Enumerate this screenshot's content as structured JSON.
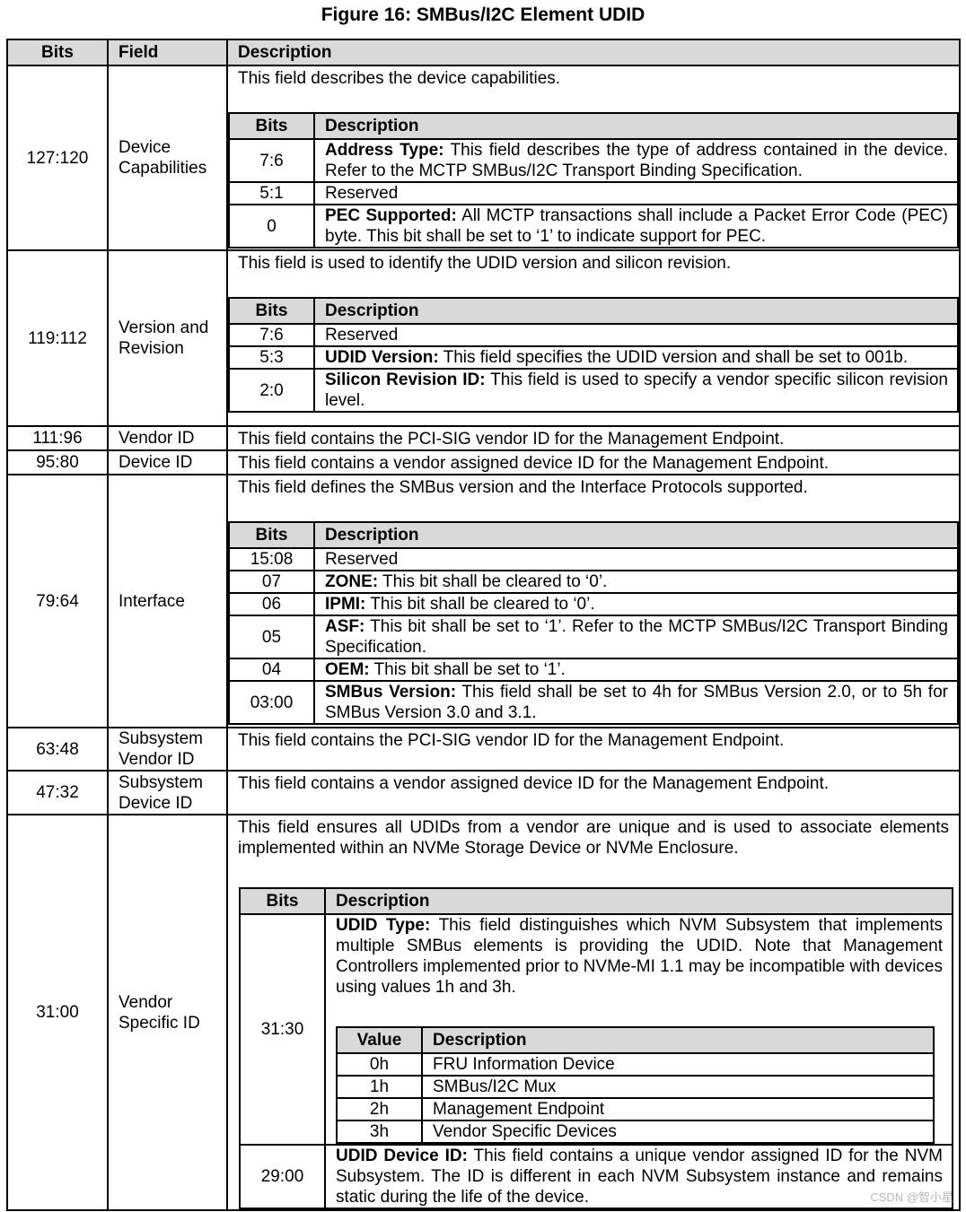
{
  "title": "Figure 16: SMBus/I2C Element UDID",
  "headers": [
    "Bits",
    "Field",
    "Description"
  ],
  "rows": [
    {
      "bits": "127:120",
      "field": "Device Capabilities",
      "intro": "This field describes the device capabilities.",
      "sub": {
        "headers": [
          "Bits",
          "Description"
        ],
        "rows": [
          {
            "bits": "7:6",
            "label": "Address Type:",
            "text": " This field describes the type of address contained in the device. Refer to the MCTP SMBus/I2C Transport Binding Specification."
          },
          {
            "bits": "5:1",
            "text": "Reserved"
          },
          {
            "bits": "0",
            "label": "PEC Supported:",
            "text": " All MCTP transactions shall include a Packet Error Code (PEC) byte. This bit shall be set to ‘1’ to indicate support for PEC."
          }
        ]
      }
    },
    {
      "bits": "119:112",
      "field": "Version and Revision",
      "intro": "This field is used to identify the UDID version and silicon revision.",
      "sub": {
        "headers": [
          "Bits",
          "Description"
        ],
        "rows": [
          {
            "bits": "7:6",
            "text": "Reserved"
          },
          {
            "bits": "5:3",
            "label": "UDID Version:",
            "text": " This field specifies the UDID version and shall be set to 001b."
          },
          {
            "bits": "2:0",
            "label": "Silicon Revision ID:",
            "text": " This field is used to specify a vendor specific silicon revision level."
          }
        ]
      }
    },
    {
      "bits": "111:96",
      "field": "Vendor ID",
      "intro": "This field contains the PCI-SIG vendor ID for the Management Endpoint."
    },
    {
      "bits": "95:80",
      "field": "Device ID",
      "intro": "This field contains a vendor assigned device ID for the Management Endpoint."
    },
    {
      "bits": "79:64",
      "field": "Interface",
      "intro": "This field defines the SMBus version and the Interface Protocols supported.",
      "sub": {
        "headers": [
          "Bits",
          "Description"
        ],
        "rows": [
          {
            "bits": "15:08",
            "text": "Reserved"
          },
          {
            "bits": "07",
            "label": "ZONE:",
            "text": " This bit shall be cleared to ‘0’."
          },
          {
            "bits": "06",
            "label": "IPMI:",
            "text": " This bit shall be cleared to ‘0’."
          },
          {
            "bits": "05",
            "label": "ASF:",
            "text": " This bit shall be set to ‘1’. Refer to the MCTP SMBus/I2C Transport Binding Specification."
          },
          {
            "bits": "04",
            "label": "OEM:",
            "text": " This bit shall be set to ‘1’."
          },
          {
            "bits": "03:00",
            "label": "SMBus Version:",
            "text": " This field shall be set to 4h for SMBus Version 2.0, or to 5h for SMBus Version 3.0 and 3.1."
          }
        ]
      }
    },
    {
      "bits": "63:48",
      "field": "Subsystem Vendor ID",
      "intro": "This field contains the PCI-SIG vendor ID for the Management Endpoint."
    },
    {
      "bits": "47:32",
      "field": "Subsystem Device ID",
      "intro": "This field contains a vendor assigned device ID for the Management Endpoint."
    },
    {
      "bits": "31:00",
      "field": "Vendor Specific ID",
      "intro": "This field ensures all UDIDs from a vendor are unique and is used to associate elements implemented within an NVMe Storage Device or NVMe Enclosure.",
      "sub": {
        "headers": [
          "Bits",
          "Description"
        ],
        "rows": [
          {
            "bits": "31:30",
            "label": "UDID Type:",
            "text": " This field distinguishes which NVM Subsystem that implements multiple SMBus elements is providing the UDID. Note that Management Controllers implemented prior to NVMe-MI 1.1 may be incompatible with devices using values 1h and 3h.",
            "sub": {
              "headers": [
                "Value",
                "Description"
              ],
              "rows": [
                {
                  "bits": "0h",
                  "text": "FRU Information Device"
                },
                {
                  "bits": "1h",
                  "text": "SMBus/I2C Mux"
                },
                {
                  "bits": "2h",
                  "text": "Management Endpoint"
                },
                {
                  "bits": "3h",
                  "text": "Vendor Specific Devices"
                }
              ]
            }
          },
          {
            "bits": "29:00",
            "label": "UDID Device ID:",
            "text": " This field contains a unique vendor assigned ID for the NVM Subsystem. The ID is different in each NVM Subsystem instance and remains static during the life of the device."
          }
        ]
      }
    }
  ],
  "watermark": "CSDN @智小星",
  "colors": {
    "header_bg": "#d9d9d9",
    "border": "#000000"
  }
}
